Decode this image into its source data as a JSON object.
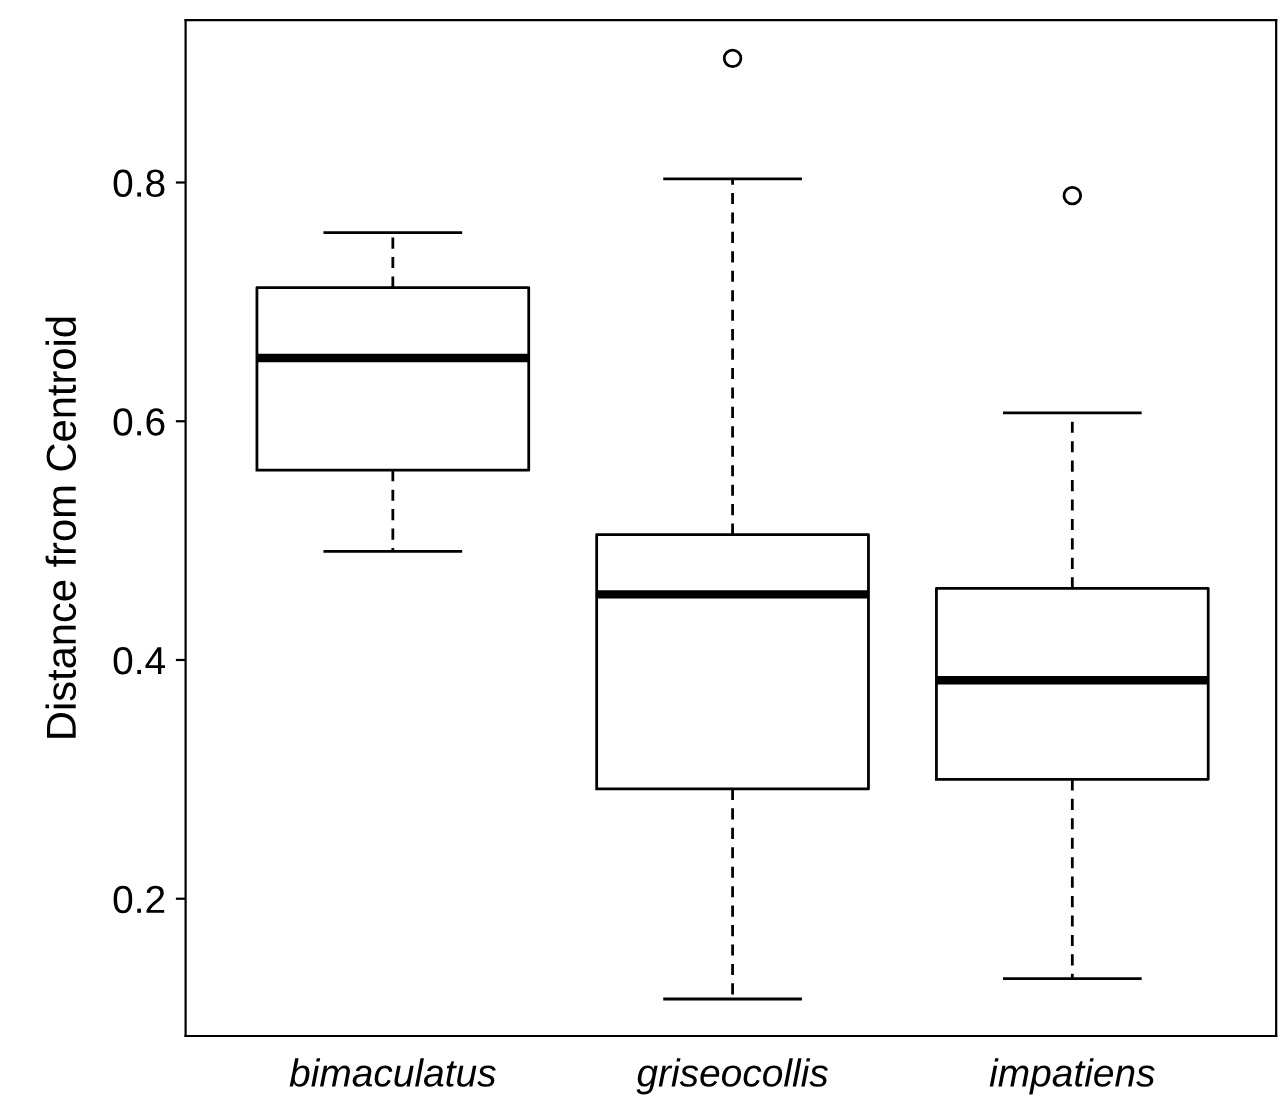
{
  "chart_data": {
    "type": "box",
    "ylabel": "Distance from Centroid",
    "categories": [
      "bimaculatus",
      "griseocollis",
      "impatiens"
    ],
    "boxes": [
      {
        "low": 0.491,
        "q1": 0.559,
        "median": 0.653,
        "q3": 0.712,
        "high": 0.758
      },
      {
        "low": 0.116,
        "q1": 0.292,
        "median": 0.455,
        "q3": 0.505,
        "high": 0.803,
        "outliers": [
          0.904
        ]
      },
      {
        "low": 0.133,
        "q1": 0.3,
        "median": 0.383,
        "q3": 0.46,
        "high": 0.607,
        "outliers": [
          0.789
        ]
      }
    ],
    "ylim": [
      0.085,
      0.936
    ],
    "yticks": [
      0.2,
      0.4,
      0.6,
      0.8
    ],
    "grid": false,
    "legend": false
  }
}
